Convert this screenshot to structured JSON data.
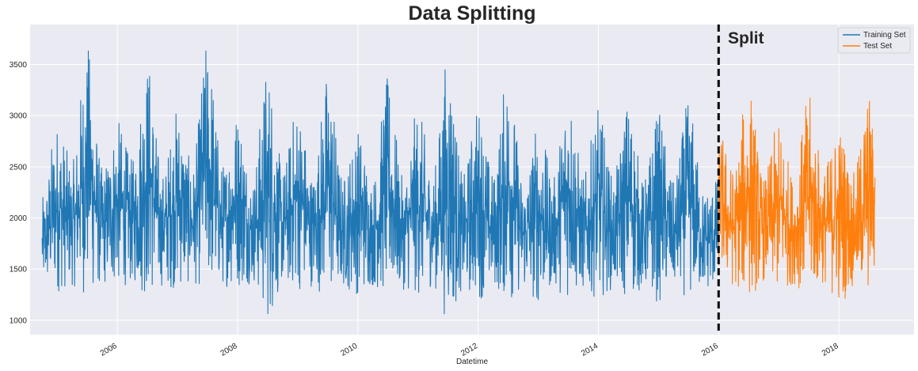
{
  "chart_data": {
    "type": "line",
    "title": "Data Splitting",
    "xlabel": "Datetime",
    "ylabel": "",
    "xlim": [
      2004.55,
      2019.25
    ],
    "ylim": [
      860,
      3890
    ],
    "x_ticks": [
      2006,
      2008,
      2010,
      2012,
      2014,
      2016,
      2018
    ],
    "y_ticks": [
      1000,
      1500,
      2000,
      2500,
      3000,
      3500
    ],
    "grid": true,
    "legend_position": "top-right",
    "split_x": 2016.0,
    "annotation": "Split",
    "colors": {
      "train": "#1f77b4",
      "test": "#ff7f0e",
      "split_line": "#000000",
      "background": "#eaeaf2"
    },
    "series": [
      {
        "name": "Training Set",
        "x_range": [
          2004.75,
          2016.0
        ],
        "envelope": {
          "x": [
            2004.75,
            2005.0,
            2005.25,
            2005.5,
            2005.75,
            2006.0,
            2006.25,
            2006.5,
            2006.75,
            2007.0,
            2007.25,
            2007.5,
            2007.75,
            2008.0,
            2008.25,
            2008.5,
            2008.75,
            2009.0,
            2009.25,
            2009.5,
            2009.75,
            2010.0,
            2010.25,
            2010.5,
            2010.75,
            2011.0,
            2011.25,
            2011.5,
            2011.75,
            2012.0,
            2012.25,
            2012.5,
            2012.75,
            2013.0,
            2013.25,
            2013.5,
            2013.75,
            2014.0,
            2014.25,
            2014.5,
            2014.75,
            2015.0,
            2015.25,
            2015.5,
            2015.75,
            2016.0
          ],
          "max": [
            2200,
            2970,
            2550,
            3720,
            2500,
            2960,
            2580,
            3600,
            2450,
            3100,
            2520,
            3750,
            2550,
            3100,
            2400,
            3550,
            2500,
            3150,
            2450,
            3450,
            2420,
            2900,
            2400,
            3380,
            2400,
            3080,
            2450,
            3650,
            2420,
            3130,
            2450,
            3500,
            2380,
            2950,
            2400,
            3360,
            2420,
            3070,
            2400,
            3180,
            2380,
            3050,
            2350,
            3150,
            2300,
            2400
          ],
          "min": [
            1280,
            1270,
            1330,
            1230,
            1330,
            1320,
            1350,
            1210,
            1330,
            1300,
            1350,
            1290,
            1330,
            1310,
            1360,
            980,
            1330,
            1280,
            1330,
            1200,
            1310,
            1250,
            1320,
            1210,
            1300,
            1220,
            1330,
            1000,
            1280,
            1200,
            1310,
            1170,
            1290,
            1150,
            1320,
            1200,
            1290,
            1220,
            1300,
            1200,
            1290,
            1170,
            1310,
            1220,
            1280,
            1300
          ]
        }
      },
      {
        "name": "Test Set",
        "x_range": [
          2016.0,
          2018.6
        ],
        "envelope": {
          "x": [
            2016.0,
            2016.25,
            2016.5,
            2016.75,
            2017.0,
            2017.25,
            2017.5,
            2017.75,
            2018.0,
            2018.25,
            2018.5,
            2018.6
          ],
          "max": [
            2900,
            2500,
            3320,
            2400,
            2950,
            2420,
            3200,
            2500,
            2950,
            2450,
            3250,
            2800
          ],
          "min": [
            1450,
            1320,
            1200,
            1380,
            1250,
            1350,
            1200,
            1350,
            1150,
            1310,
            1230,
            1400
          ]
        }
      }
    ]
  }
}
